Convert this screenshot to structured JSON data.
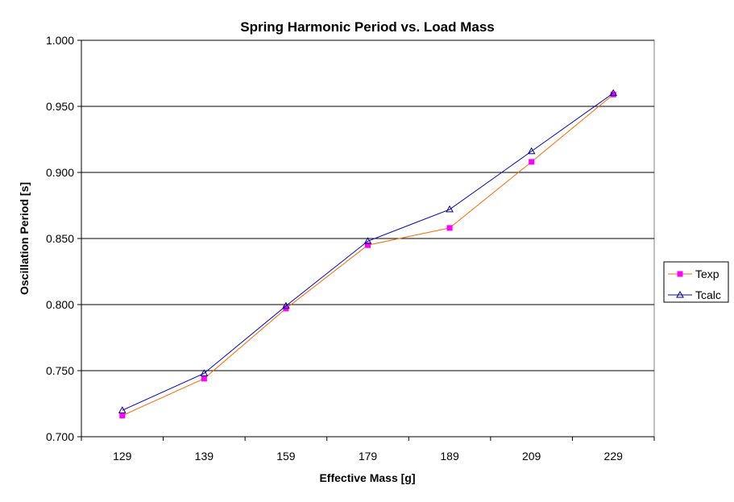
{
  "chart_data": {
    "type": "line",
    "title": "Spring Harmonic Period vs. Load Mass",
    "xlabel": "Effective Mass [g]",
    "ylabel": "Oscillation Period [s]",
    "categories": [
      "129",
      "139",
      "159",
      "179",
      "189",
      "209",
      "229"
    ],
    "ylim": [
      0.7,
      1.0
    ],
    "yticks": [
      "0.700",
      "0.750",
      "0.800",
      "0.850",
      "0.900",
      "0.950",
      "1.000"
    ],
    "grid": "horizontal",
    "legend_position": "right",
    "series": [
      {
        "name": "Texp",
        "marker": "square",
        "line_color": "#FF6600",
        "marker_color": "#FF00FF",
        "values": [
          0.716,
          0.744,
          0.797,
          0.845,
          0.858,
          0.908,
          0.959
        ]
      },
      {
        "name": "Tcalc",
        "marker": "triangle",
        "line_color": "#0000CC",
        "marker_color": "#000080",
        "values": [
          0.72,
          0.748,
          0.799,
          0.848,
          0.872,
          0.916,
          0.96
        ]
      }
    ]
  }
}
